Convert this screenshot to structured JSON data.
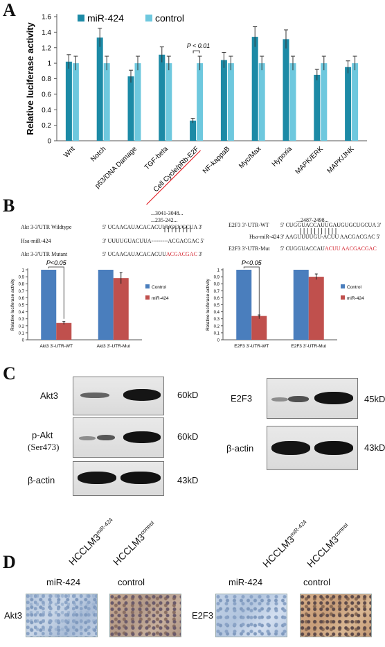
{
  "panel_a": {
    "letter": "A",
    "chart_data": {
      "type": "bar",
      "ylabel": "Relative luciferase activity",
      "ylim": [
        0,
        1.6
      ],
      "yticks": [
        "0",
        "0.2",
        "0.4",
        "0.6",
        "0.8",
        "1",
        "1.2",
        "1.4",
        "1.6"
      ],
      "categories": [
        "Wnt",
        "Notch",
        "p53/DNA Damage",
        "TGF-beta",
        "Cell Cycle/pRb-E2F",
        "NF-kappaB",
        "Myc/Max",
        "Hypoxia",
        "MAPK/ERK",
        "MAPK/JNK"
      ],
      "series": [
        {
          "name": "miR-424",
          "color": "#1c8aa6",
          "values": [
            1.02,
            1.33,
            0.83,
            1.11,
            0.26,
            1.04,
            1.34,
            1.31,
            0.85,
            0.95
          ],
          "errors": [
            0.09,
            0.12,
            0.08,
            0.1,
            0.03,
            0.1,
            0.13,
            0.12,
            0.07,
            0.08
          ]
        },
        {
          "name": "control",
          "color": "#6ec8de",
          "values": [
            1.0,
            1.0,
            1.0,
            1.0,
            1.0,
            1.0,
            1.0,
            1.0,
            1.0,
            1.0
          ],
          "errors": [
            0.09,
            0.09,
            0.09,
            0.09,
            0.09,
            0.09,
            0.09,
            0.09,
            0.09,
            0.09
          ]
        }
      ],
      "annotation": "P < 0.01",
      "annotated_category": "Cell Cycle/pRb-E2F",
      "underlined_category_color": "#e3262d"
    }
  },
  "panel_b": {
    "letter": "B",
    "left": {
      "pos_label": "...3041-3048...",
      "pos_label2": "...235-242...",
      "row1_label": "Akt 3-3'UTR Wildtype",
      "row1_seq": "5' UCAACAUACACACUUUGCUGCUA 3'",
      "row2_label": "Hsa-miR-424",
      "row2_seq": "3' UUUUGUACUUA---------ACGACGAC 5'",
      "row3_label": "Akt 3-3'UTR Mutant",
      "row3_seq_black": "5' UCAACAUACACACUU",
      "row3_seq_red": "ACGACGAC",
      "row3_seq_end": " 3'",
      "chart_data": {
        "type": "bar",
        "ylabel": "Relative luciferase activity",
        "ylim": [
          0,
          1
        ],
        "yticks": [
          "0",
          "0.1",
          "0.2",
          "0.3",
          "0.4",
          "0.5",
          "0.6",
          "0.7",
          "0.8",
          "0.9",
          "1"
        ],
        "categories": [
          "Akt3 3'-UTR-WT",
          "Akt3 3'-UTR-Mut"
        ],
        "series": [
          {
            "name": "Control",
            "color": "#4a7ebd",
            "values": [
              1.0,
              1.0
            ],
            "errors": [
              0,
              0
            ]
          },
          {
            "name": "miR-424",
            "color": "#c0504d",
            "values": [
              0.24,
              0.88
            ],
            "errors": [
              0.02,
              0.08
            ]
          }
        ],
        "annotation": "P<0.05"
      }
    },
    "right": {
      "pos_label": "...2487-2498...",
      "row1_label": "E2F3 3'-UTR-WT",
      "row1_seq": "5' CUGGUACCAUUGAUGUGCUGCUA 3'",
      "row2_label": "Hsa-miR-424",
      "row2_seq": "3' AAGUUUUGU-ACUU AACGACGAC 5'",
      "row3_label": "E2F3 3'-UTR-Mut",
      "row3_seq_black": "5' CUGGUACCAU",
      "row3_seq_red": "ACUU AACGACGAC",
      "chart_data": {
        "type": "bar",
        "ylabel": "Relative luciferase activity",
        "ylim": [
          0,
          1
        ],
        "yticks": [
          "0",
          "0.1",
          "0.2",
          "0.3",
          "0.4",
          "0.5",
          "0.6",
          "0.7",
          "0.8",
          "0.9",
          "1"
        ],
        "categories": [
          "E2F3 3'-UTR-WT",
          "E2F3 3'-UTR-Mut"
        ],
        "series": [
          {
            "name": "Control",
            "color": "#4a7ebd",
            "values": [
              1.0,
              1.0
            ],
            "errors": [
              0,
              0
            ]
          },
          {
            "name": "miR-424",
            "color": "#c0504d",
            "values": [
              0.34,
              0.9
            ],
            "errors": [
              0.015,
              0.04
            ]
          }
        ],
        "annotation": "P<0.05"
      }
    }
  },
  "panel_c": {
    "letter": "C",
    "left": {
      "akt3": "Akt3",
      "pakt": "p-Akt",
      "pakt_site": "(Ser473)",
      "actin": "β-actin",
      "kd1": "60kD",
      "kd2": "60kD",
      "kd3": "43kD"
    },
    "right": {
      "e2f3": "E2F3",
      "actin": "β-actin",
      "kd1": "45kD",
      "kd2": "43kD"
    },
    "lane1_base": "HCCLM3",
    "lane1_sup": "miR-424",
    "lane2_base": "HCCLM3",
    "lane2_sup": "control"
  },
  "panel_d": {
    "letter": "D",
    "left_row": "Akt3",
    "right_row": "E2F3",
    "col1": "miR-424",
    "col2": "control",
    "col3": "miR-424",
    "col4": "control"
  }
}
